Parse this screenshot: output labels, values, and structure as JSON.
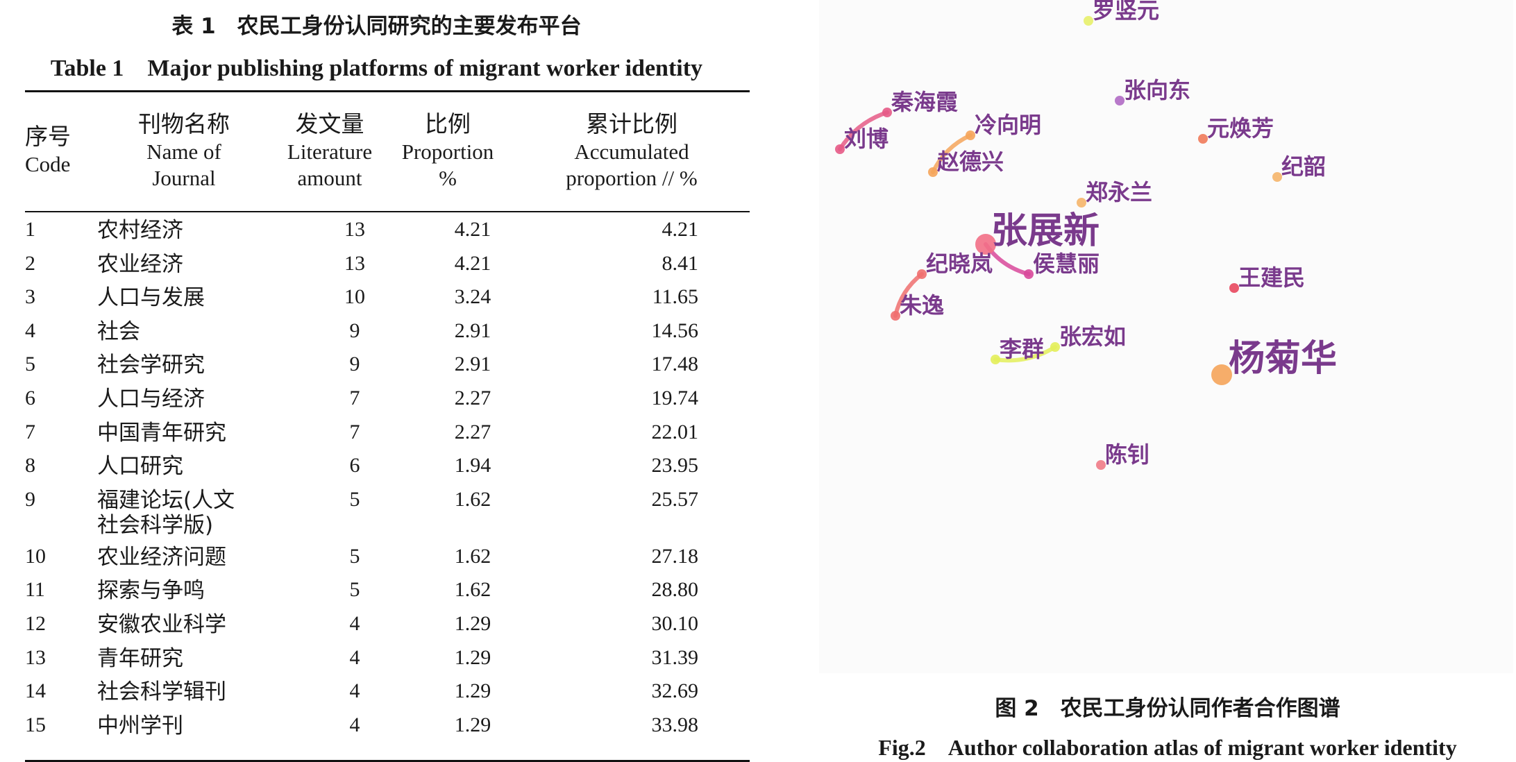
{
  "table": {
    "caption_zh": "表 1　农民工身份认同研究的主要发布平台",
    "caption_en": "Table 1　Major publishing platforms of migrant worker identity",
    "headers": {
      "code": [
        "序号",
        "Code"
      ],
      "name": [
        "刊物名称",
        "Name of",
        "Journal"
      ],
      "amount": [
        "发文量",
        "Literature",
        "amount"
      ],
      "proportion": [
        "比例",
        "Proportion",
        "%"
      ],
      "accumulated": [
        "累计比例",
        "Accumulated",
        "proportion // %"
      ]
    },
    "rows": [
      {
        "code": "1",
        "name": "农村经济",
        "amount": "13",
        "proportion": "4.21",
        "accumulated": "4.21"
      },
      {
        "code": "2",
        "name": "农业经济",
        "amount": "13",
        "proportion": "4.21",
        "accumulated": "8.41"
      },
      {
        "code": "3",
        "name": "人口与发展",
        "amount": "10",
        "proportion": "3.24",
        "accumulated": "11.65"
      },
      {
        "code": "4",
        "name": "社会",
        "amount": "9",
        "proportion": "2.91",
        "accumulated": "14.56"
      },
      {
        "code": "5",
        "name": "社会学研究",
        "amount": "9",
        "proportion": "2.91",
        "accumulated": "17.48"
      },
      {
        "code": "6",
        "name": "人口与经济",
        "amount": "7",
        "proportion": "2.27",
        "accumulated": "19.74"
      },
      {
        "code": "7",
        "name": "中国青年研究",
        "amount": "7",
        "proportion": "2.27",
        "accumulated": "22.01"
      },
      {
        "code": "8",
        "name": "人口研究",
        "amount": "6",
        "proportion": "1.94",
        "accumulated": "23.95"
      },
      {
        "code": "9",
        "name": "福建论坛(人文\n社会科学版)",
        "amount": "5",
        "proportion": "1.62",
        "accumulated": "25.57"
      },
      {
        "code": "10",
        "name": "农业经济问题",
        "amount": "5",
        "proportion": "1.62",
        "accumulated": "27.18"
      },
      {
        "code": "11",
        "name": "探索与争鸣",
        "amount": "5",
        "proportion": "1.62",
        "accumulated": "28.80"
      },
      {
        "code": "12",
        "name": "安徽农业科学",
        "amount": "4",
        "proportion": "1.29",
        "accumulated": "30.10"
      },
      {
        "code": "13",
        "name": "青年研究",
        "amount": "4",
        "proportion": "1.29",
        "accumulated": "31.39"
      },
      {
        "code": "14",
        "name": "社会科学辑刊",
        "amount": "4",
        "proportion": "1.29",
        "accumulated": "32.69"
      },
      {
        "code": "15",
        "name": "中州学刊",
        "amount": "4",
        "proportion": "1.29",
        "accumulated": "33.98"
      }
    ]
  },
  "figure": {
    "caption_zh": "图 2　农民工身份认同作者合作图谱",
    "caption_en": "Fig.2　Author collaboration atlas of migrant worker identity",
    "nodes": [
      {
        "id": "罗竖元",
        "label": "罗竖元",
        "color": "#e7ef6a",
        "size": "small"
      },
      {
        "id": "张向东",
        "label": "张向东",
        "color": "#b06ac4",
        "size": "small"
      },
      {
        "id": "秦海霞",
        "label": "秦海霞",
        "color": "#e55a86",
        "size": "small"
      },
      {
        "id": "刘博",
        "label": "刘博",
        "color": "#e55a86",
        "size": "small"
      },
      {
        "id": "冷向明",
        "label": "冷向明",
        "color": "#f5a45a",
        "size": "small"
      },
      {
        "id": "元焕芳",
        "label": "元焕芳",
        "color": "#f07a5a",
        "size": "small"
      },
      {
        "id": "赵德兴",
        "label": "赵德兴",
        "color": "#f5a45a",
        "size": "small"
      },
      {
        "id": "纪韶",
        "label": "纪韶",
        "color": "#f5b56a",
        "size": "small"
      },
      {
        "id": "郑永兰",
        "label": "郑永兰",
        "color": "#f5b56a",
        "size": "small"
      },
      {
        "id": "张展新",
        "label": "张展新",
        "color": "#f26f86",
        "size": "large"
      },
      {
        "id": "纪晓岚",
        "label": "纪晓岚",
        "color": "#ef6e6e",
        "size": "small"
      },
      {
        "id": "侯慧丽",
        "label": "侯慧丽",
        "color": "#d8489a",
        "size": "small"
      },
      {
        "id": "王建民",
        "label": "王建民",
        "color": "#e8475e",
        "size": "small"
      },
      {
        "id": "朱逸",
        "label": "朱逸",
        "color": "#ef6e6e",
        "size": "small"
      },
      {
        "id": "李群",
        "label": "李群",
        "color": "#e3ee5a",
        "size": "small"
      },
      {
        "id": "张宏如",
        "label": "张宏如",
        "color": "#e3ee5a",
        "size": "small"
      },
      {
        "id": "杨菊华",
        "label": "杨菊华",
        "color": "#f5a45a",
        "size": "large"
      },
      {
        "id": "陈钊",
        "label": "陈钊",
        "color": "#f07a86",
        "size": "small"
      }
    ],
    "links": [
      {
        "source": "秦海霞",
        "target": "刘博",
        "color": "#e55a86"
      },
      {
        "source": "冷向明",
        "target": "赵德兴",
        "color": "#f5a45a"
      },
      {
        "source": "张展新",
        "target": "侯慧丽",
        "color": "#d8489a"
      },
      {
        "source": "纪晓岚",
        "target": "朱逸",
        "color": "#ef6e6e"
      },
      {
        "source": "李群",
        "target": "张宏如",
        "color": "#e3ee5a"
      }
    ]
  }
}
